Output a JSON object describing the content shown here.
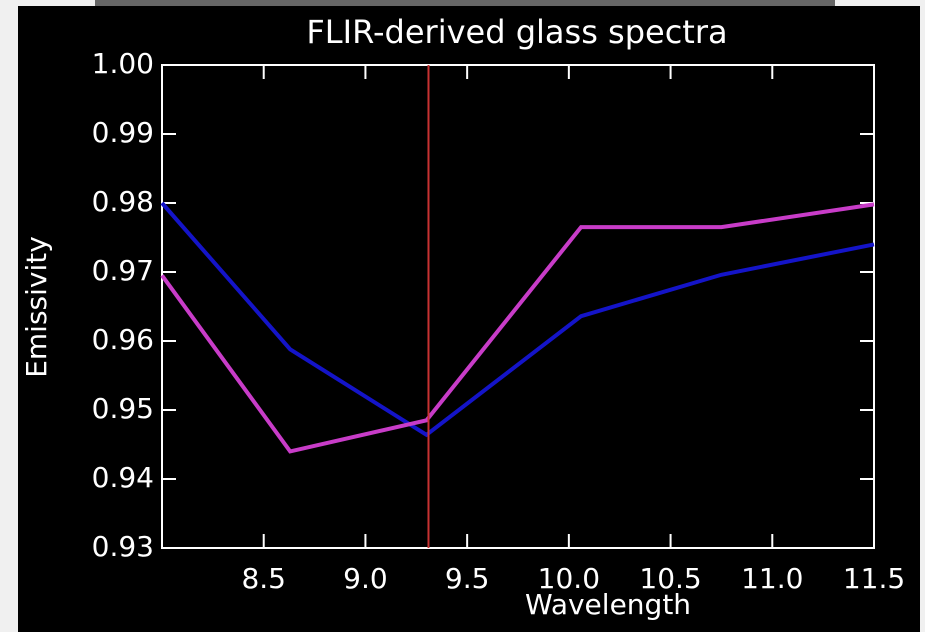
{
  "chart_data": {
    "type": "line",
    "title": "FLIR-derived glass spectra",
    "x_label": "Wavelength",
    "y_label": "Emissivity",
    "x": [
      8.0,
      8.63,
      9.3,
      10.06,
      10.75,
      11.5
    ],
    "series": [
      {
        "color": "#1414c8",
        "values": [
          0.98,
          0.9588,
          0.9464,
          0.9636,
          0.9696,
          0.974
        ]
      },
      {
        "color": "#c83cc8",
        "values": [
          0.9695,
          0.944,
          0.9485,
          0.9765,
          0.9765,
          0.9798
        ]
      }
    ],
    "marker_x": 9.31,
    "marker_color": "#c83232",
    "xlim": [
      8.0,
      11.5
    ],
    "xticks": [
      {
        "value": 8.5,
        "label": "8.5"
      },
      {
        "value": 9.0,
        "label": "9.0"
      },
      {
        "value": 9.5,
        "label": "9.5"
      },
      {
        "value": 10.0,
        "label": "10.0"
      },
      {
        "value": 10.5,
        "label": "10.5"
      },
      {
        "value": 11.0,
        "label": "11.0"
      },
      {
        "value": 11.5,
        "label": "11.5"
      }
    ],
    "ylim": [
      0.93,
      1.0
    ],
    "yticks": [
      {
        "value": 0.93,
        "label": "0.93"
      },
      0.94,
      0.95,
      0.96,
      0.97,
      0.98,
      0.99,
      {
        "value": 1.0,
        "label": "1.00"
      }
    ]
  }
}
